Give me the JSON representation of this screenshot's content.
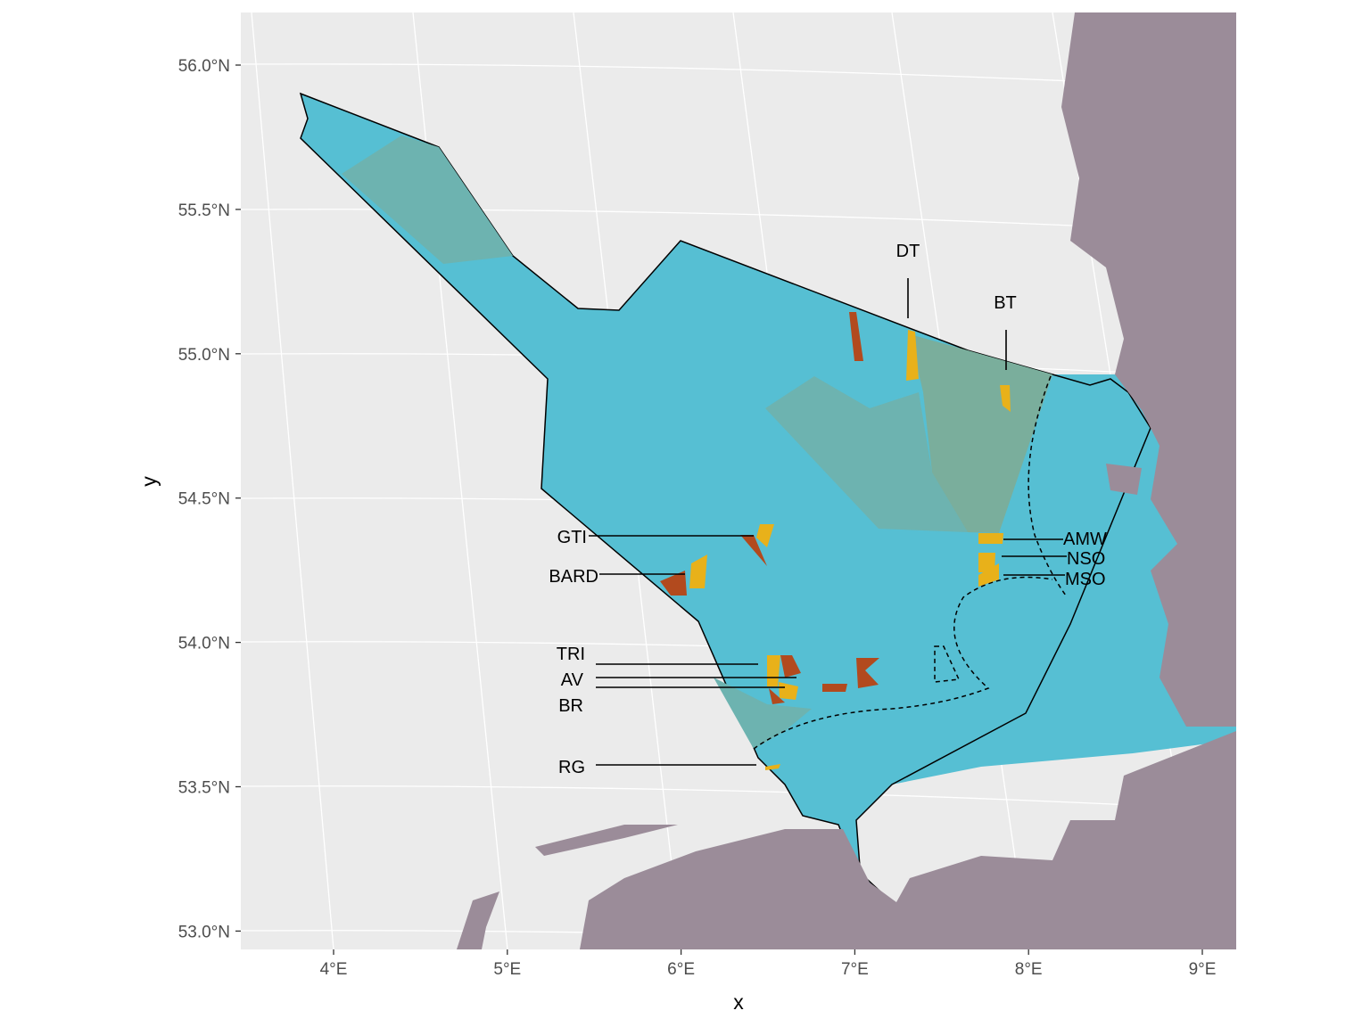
{
  "axes": {
    "x_title": "x",
    "y_title": "y",
    "x_tick_labels": [
      "4°E",
      "5°E",
      "6°E",
      "7°E",
      "8°E",
      "9°E"
    ],
    "y_tick_labels": [
      "56.0°N",
      "55.5°N",
      "55.0°N",
      "54.5°N",
      "54.0°N",
      "53.5°N",
      "53.0°N"
    ]
  },
  "labels": [
    "DT",
    "BT",
    "GTI",
    "BARD",
    "TRI",
    "AV",
    "BR",
    "RG",
    "AMW",
    "NSO",
    "MSO"
  ]
}
